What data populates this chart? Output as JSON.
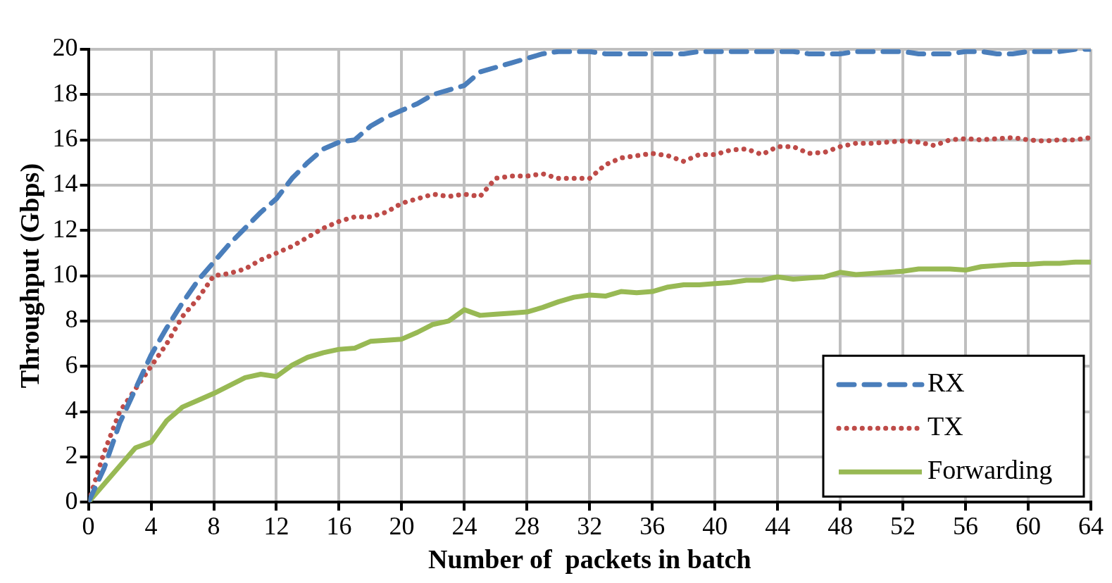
{
  "chart_data": {
    "type": "line",
    "xlabel": "Number of  packets in batch",
    "ylabel": "Throughput (Gbps)",
    "x": [
      0,
      1,
      2,
      3,
      4,
      5,
      6,
      7,
      8,
      9,
      10,
      11,
      12,
      13,
      14,
      15,
      16,
      17,
      18,
      19,
      20,
      21,
      22,
      23,
      24,
      25,
      26,
      27,
      28,
      29,
      30,
      31,
      32,
      33,
      34,
      35,
      36,
      37,
      38,
      39,
      40,
      41,
      42,
      43,
      44,
      45,
      46,
      47,
      48,
      49,
      50,
      51,
      52,
      53,
      54,
      55,
      56,
      57,
      58,
      59,
      60,
      61,
      62,
      63,
      64
    ],
    "series": [
      {
        "name": "RX",
        "color": "#4a7ebb",
        "line_style": "dashed",
        "values": [
          0,
          1.5,
          3.5,
          5,
          6.5,
          7.7,
          8.8,
          9.8,
          10.6,
          11.4,
          12.1,
          12.8,
          13.4,
          14.3,
          15.0,
          15.6,
          15.9,
          16.0,
          16.6,
          17.0,
          17.3,
          17.6,
          18.0,
          18.2,
          18.4,
          19.0,
          19.2,
          19.4,
          19.6,
          19.8,
          19.9,
          19.9,
          19.9,
          19.8,
          19.8,
          19.8,
          19.8,
          19.8,
          19.8,
          19.9,
          19.9,
          19.9,
          19.9,
          19.9,
          19.9,
          19.9,
          19.8,
          19.8,
          19.8,
          19.9,
          19.9,
          19.9,
          19.9,
          19.8,
          19.8,
          19.8,
          19.9,
          19.9,
          19.8,
          19.8,
          19.9,
          19.9,
          19.9,
          20.0,
          20.0
        ]
      },
      {
        "name": "TX",
        "color": "#be4b48",
        "line_style": "dotted",
        "values": [
          0,
          2.2,
          4.0,
          5.0,
          6.0,
          7.0,
          8.2,
          9.0,
          10.0,
          10.1,
          10.3,
          10.7,
          11.0,
          11.3,
          11.7,
          12.1,
          12.4,
          12.6,
          12.6,
          12.8,
          13.2,
          13.4,
          13.6,
          13.5,
          13.6,
          13.5,
          14.3,
          14.4,
          14.4,
          14.5,
          14.3,
          14.3,
          14.3,
          14.9,
          15.2,
          15.3,
          15.4,
          15.3,
          15.05,
          15.35,
          15.35,
          15.55,
          15.6,
          15.35,
          15.7,
          15.7,
          15.4,
          15.45,
          15.7,
          15.85,
          15.85,
          15.9,
          15.95,
          15.9,
          15.75,
          16.0,
          16.05,
          16.0,
          16.05,
          16.1,
          16.0,
          15.95,
          16.0,
          16.0,
          16.1
        ]
      },
      {
        "name": "Forwarding",
        "color": "#98b954",
        "line_style": "solid",
        "values": [
          0,
          0.8,
          1.6,
          2.4,
          2.65,
          3.6,
          4.2,
          4.5,
          4.8,
          5.15,
          5.5,
          5.65,
          5.55,
          6.05,
          6.4,
          6.6,
          6.75,
          6.8,
          7.1,
          7.15,
          7.2,
          7.5,
          7.85,
          8.0,
          8.5,
          8.25,
          8.3,
          8.35,
          8.4,
          8.6,
          8.85,
          9.05,
          9.15,
          9.1,
          9.3,
          9.25,
          9.3,
          9.5,
          9.6,
          9.6,
          9.65,
          9.7,
          9.8,
          9.8,
          9.95,
          9.85,
          9.9,
          9.95,
          10.15,
          10.05,
          10.1,
          10.15,
          10.2,
          10.3,
          10.3,
          10.3,
          10.25,
          10.4,
          10.45,
          10.5,
          10.5,
          10.55,
          10.55,
          10.6,
          10.6
        ]
      }
    ],
    "xlim": [
      0,
      64
    ],
    "xticks": [
      0,
      4,
      8,
      12,
      16,
      20,
      24,
      28,
      32,
      36,
      40,
      44,
      48,
      52,
      56,
      60,
      64
    ],
    "ylim": [
      0,
      20
    ],
    "yticks": [
      0,
      2,
      4,
      6,
      8,
      10,
      12,
      14,
      16,
      18,
      20
    ],
    "grid": true,
    "legend": "bottom right",
    "marker": "none"
  }
}
